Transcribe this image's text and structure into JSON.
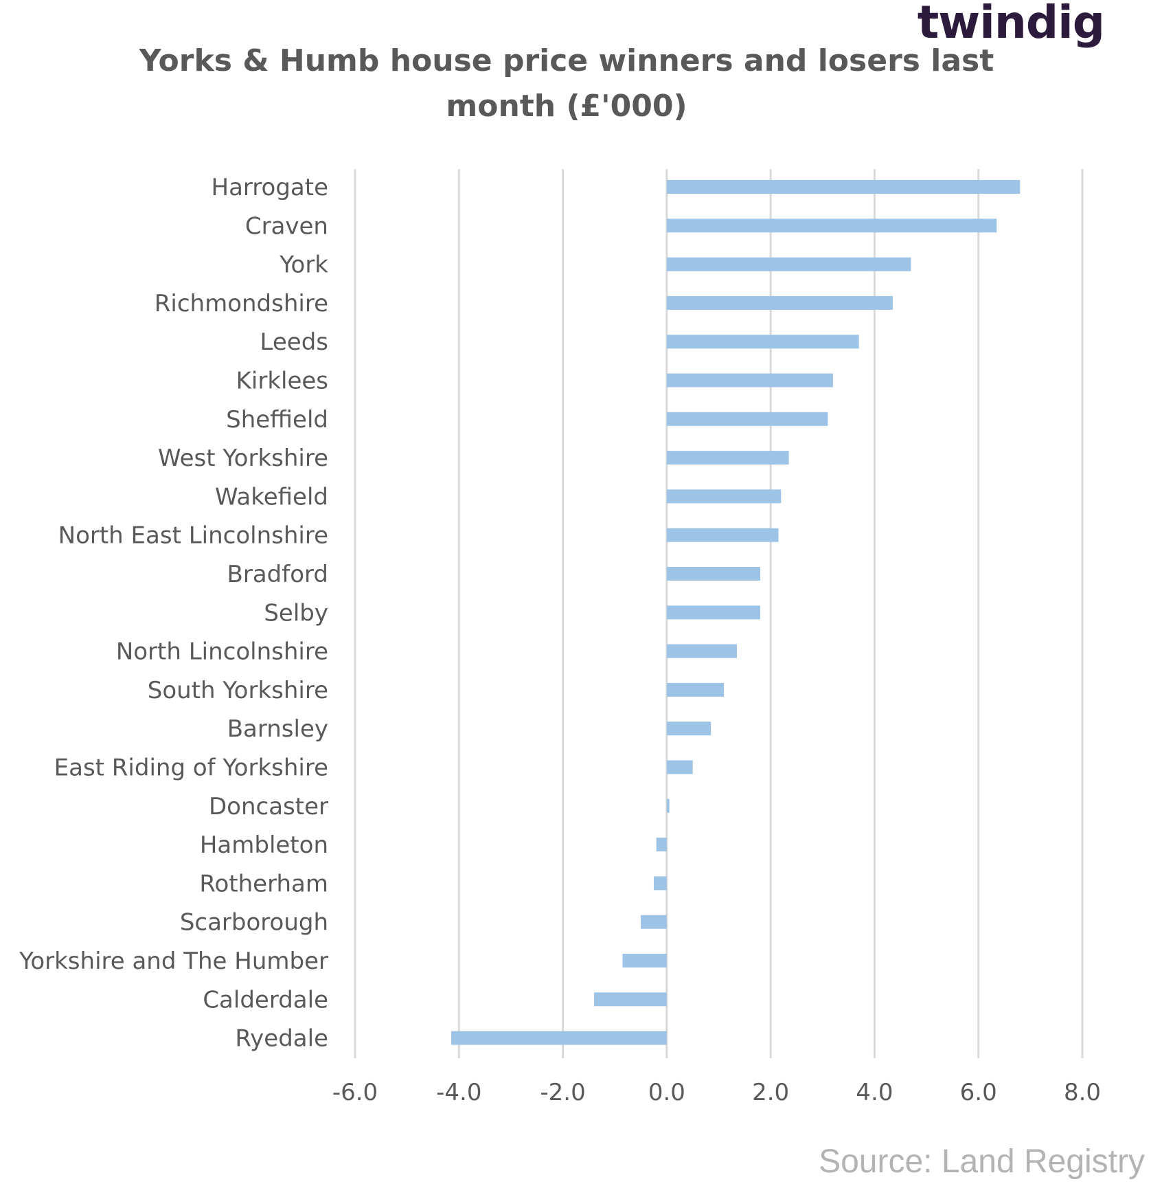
{
  "brand": {
    "logo_text": "twindig"
  },
  "source_text": "Source: Land Registry",
  "colors": {
    "bar": "#9dc3e6",
    "grid": "#d9d9d9",
    "text": "#595959",
    "source": "#b3b3b3",
    "logo": "#2d1b3d",
    "logo_accent": "#f28c28"
  },
  "chart_data": {
    "type": "bar",
    "orientation": "horizontal",
    "title": "Yorks & Humb house price winners and losers last month (£'000)",
    "xlabel": "",
    "ylabel": "",
    "xlim": [
      -6,
      8
    ],
    "xticks": [
      -6,
      -4,
      -2,
      0,
      2,
      4,
      6,
      8
    ],
    "tick_labels": [
      "-6.0",
      "-4.0",
      "-2.0",
      "0.0",
      "2.0",
      "4.0",
      "6.0",
      "8.0"
    ],
    "grid": "vertical",
    "legend": "none",
    "categories": [
      "Harrogate",
      "Craven",
      "York",
      "Richmondshire",
      "Leeds",
      "Kirklees",
      "Sheffield",
      "West Yorkshire",
      "Wakefield",
      "North East Lincolnshire",
      "Bradford",
      "Selby",
      "North Lincolnshire",
      "South Yorkshire",
      "Barnsley",
      "East Riding of Yorkshire",
      "Doncaster",
      "Hambleton",
      "Rotherham",
      "Scarborough",
      "Yorkshire and The Humber",
      "Calderdale",
      "Ryedale"
    ],
    "values": [
      6.8,
      6.35,
      4.7,
      4.35,
      3.7,
      3.2,
      3.1,
      2.35,
      2.2,
      2.15,
      1.8,
      1.8,
      1.35,
      1.1,
      0.85,
      0.5,
      0.05,
      -0.2,
      -0.25,
      -0.5,
      -0.85,
      -1.4,
      -4.15
    ]
  }
}
